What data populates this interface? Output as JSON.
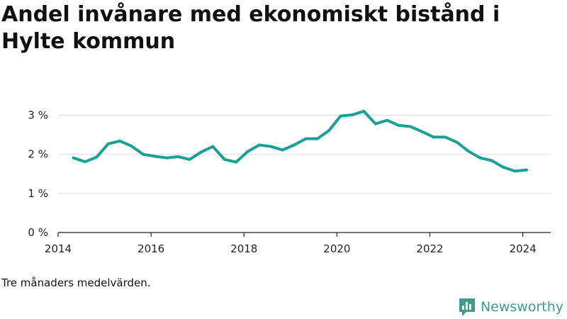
{
  "title": "Andel invånare med ekonomiskt bistånd i Hylte kommun",
  "caption": "Tre månaders medelvärden.",
  "brand": {
    "name": "Newsworthy",
    "icon": "bar-chart-logo-icon",
    "color": "#3d9b8f"
  },
  "chart_data": {
    "type": "line",
    "title": "Andel invånare med ekonomiskt bistånd i Hylte kommun",
    "xlabel": "",
    "ylabel": "",
    "xlim": [
      2014,
      2024.6
    ],
    "ylim": [
      0,
      3.3
    ],
    "grid": true,
    "legend": "none",
    "x_ticks": [
      2014,
      2016,
      2018,
      2020,
      2022,
      2024
    ],
    "x_tick_labels": [
      "2014",
      "2016",
      "2018",
      "2020",
      "2022",
      "2024"
    ],
    "y_ticks": [
      0,
      1,
      2,
      3
    ],
    "y_tick_labels": [
      "0 %",
      "1 %",
      "2 %",
      "3 %"
    ],
    "series": [
      {
        "color": "#1aa196",
        "x": [
          2014.33,
          2014.58,
          2014.83,
          2015.08,
          2015.33,
          2015.58,
          2015.83,
          2016.08,
          2016.33,
          2016.58,
          2016.83,
          2017.08,
          2017.33,
          2017.58,
          2017.83,
          2018.08,
          2018.33,
          2018.58,
          2018.83,
          2019.08,
          2019.33,
          2019.58,
          2019.83,
          2020.08,
          2020.33,
          2020.58,
          2020.83,
          2021.08,
          2021.33,
          2021.58,
          2021.83,
          2022.08,
          2022.33,
          2022.58,
          2022.83,
          2023.08,
          2023.33,
          2023.58,
          2023.83,
          2024.08
        ],
        "y": [
          1.91,
          1.81,
          1.93,
          2.27,
          2.34,
          2.21,
          2.0,
          1.95,
          1.91,
          1.94,
          1.87,
          2.06,
          2.2,
          1.87,
          1.8,
          2.07,
          2.24,
          2.2,
          2.11,
          2.24,
          2.4,
          2.4,
          2.61,
          2.98,
          3.01,
          3.1,
          2.78,
          2.87,
          2.74,
          2.71,
          2.58,
          2.44,
          2.44,
          2.31,
          2.08,
          1.91,
          1.84,
          1.67,
          1.57,
          1.6
        ]
      }
    ]
  }
}
